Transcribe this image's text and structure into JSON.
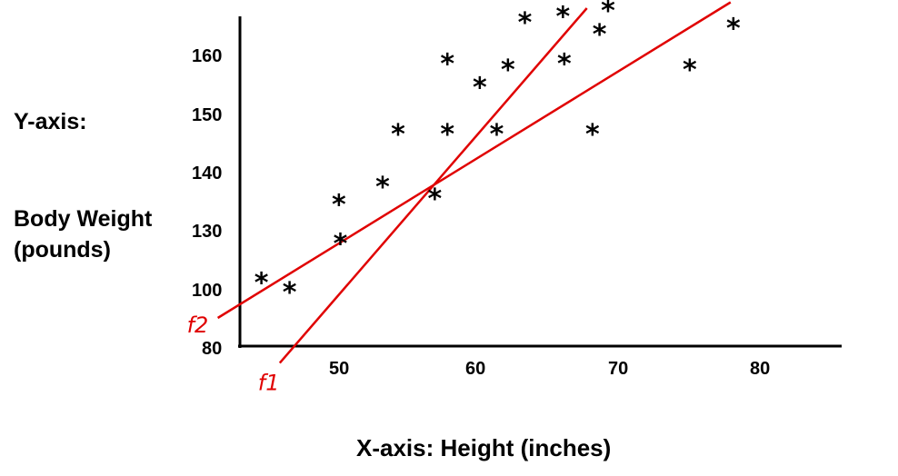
{
  "chart_data": {
    "type": "scatter",
    "ylabel_lines": [
      "Y-axis:",
      "Body Weight",
      "(pounds)"
    ],
    "xlabel": "X-axis:  Height (inches)",
    "x_ticks": [
      "50",
      "60",
      "70",
      "80"
    ],
    "y_ticks": [
      "80",
      "100",
      "130",
      "140",
      "150",
      "160"
    ],
    "marker": "*",
    "points": [
      {
        "x": 44.3,
        "y": 105
      },
      {
        "x": 46.3,
        "y": 100
      },
      {
        "x": 49.8,
        "y": 135
      },
      {
        "x": 49.9,
        "y": 125
      },
      {
        "x": 52.9,
        "y": 138
      },
      {
        "x": 54.0,
        "y": 147
      },
      {
        "x": 56.6,
        "y": 136
      },
      {
        "x": 57.5,
        "y": 159
      },
      {
        "x": 57.5,
        "y": 147
      },
      {
        "x": 59.8,
        "y": 155
      },
      {
        "x": 61.0,
        "y": 147
      },
      {
        "x": 61.8,
        "y": 158
      },
      {
        "x": 63.0,
        "y": 166
      },
      {
        "x": 65.7,
        "y": 167
      },
      {
        "x": 65.8,
        "y": 159
      },
      {
        "x": 67.8,
        "y": 147
      },
      {
        "x": 68.3,
        "y": 164
      },
      {
        "x": 68.9,
        "y": 168
      },
      {
        "x": 74.7,
        "y": 158
      },
      {
        "x": 77.8,
        "y": 165
      }
    ],
    "fit_lines": [
      {
        "name": "f1",
        "x1": 45.6,
        "y1": 74,
        "x2": 67.4,
        "y2": 168
      },
      {
        "name": "f2",
        "x1": 41.2,
        "y1": 90,
        "x2": 77.6,
        "y2": 169
      }
    ],
    "colors": {
      "fit_lines": "#e00000",
      "axes": "#000000",
      "points": "#000000"
    }
  }
}
